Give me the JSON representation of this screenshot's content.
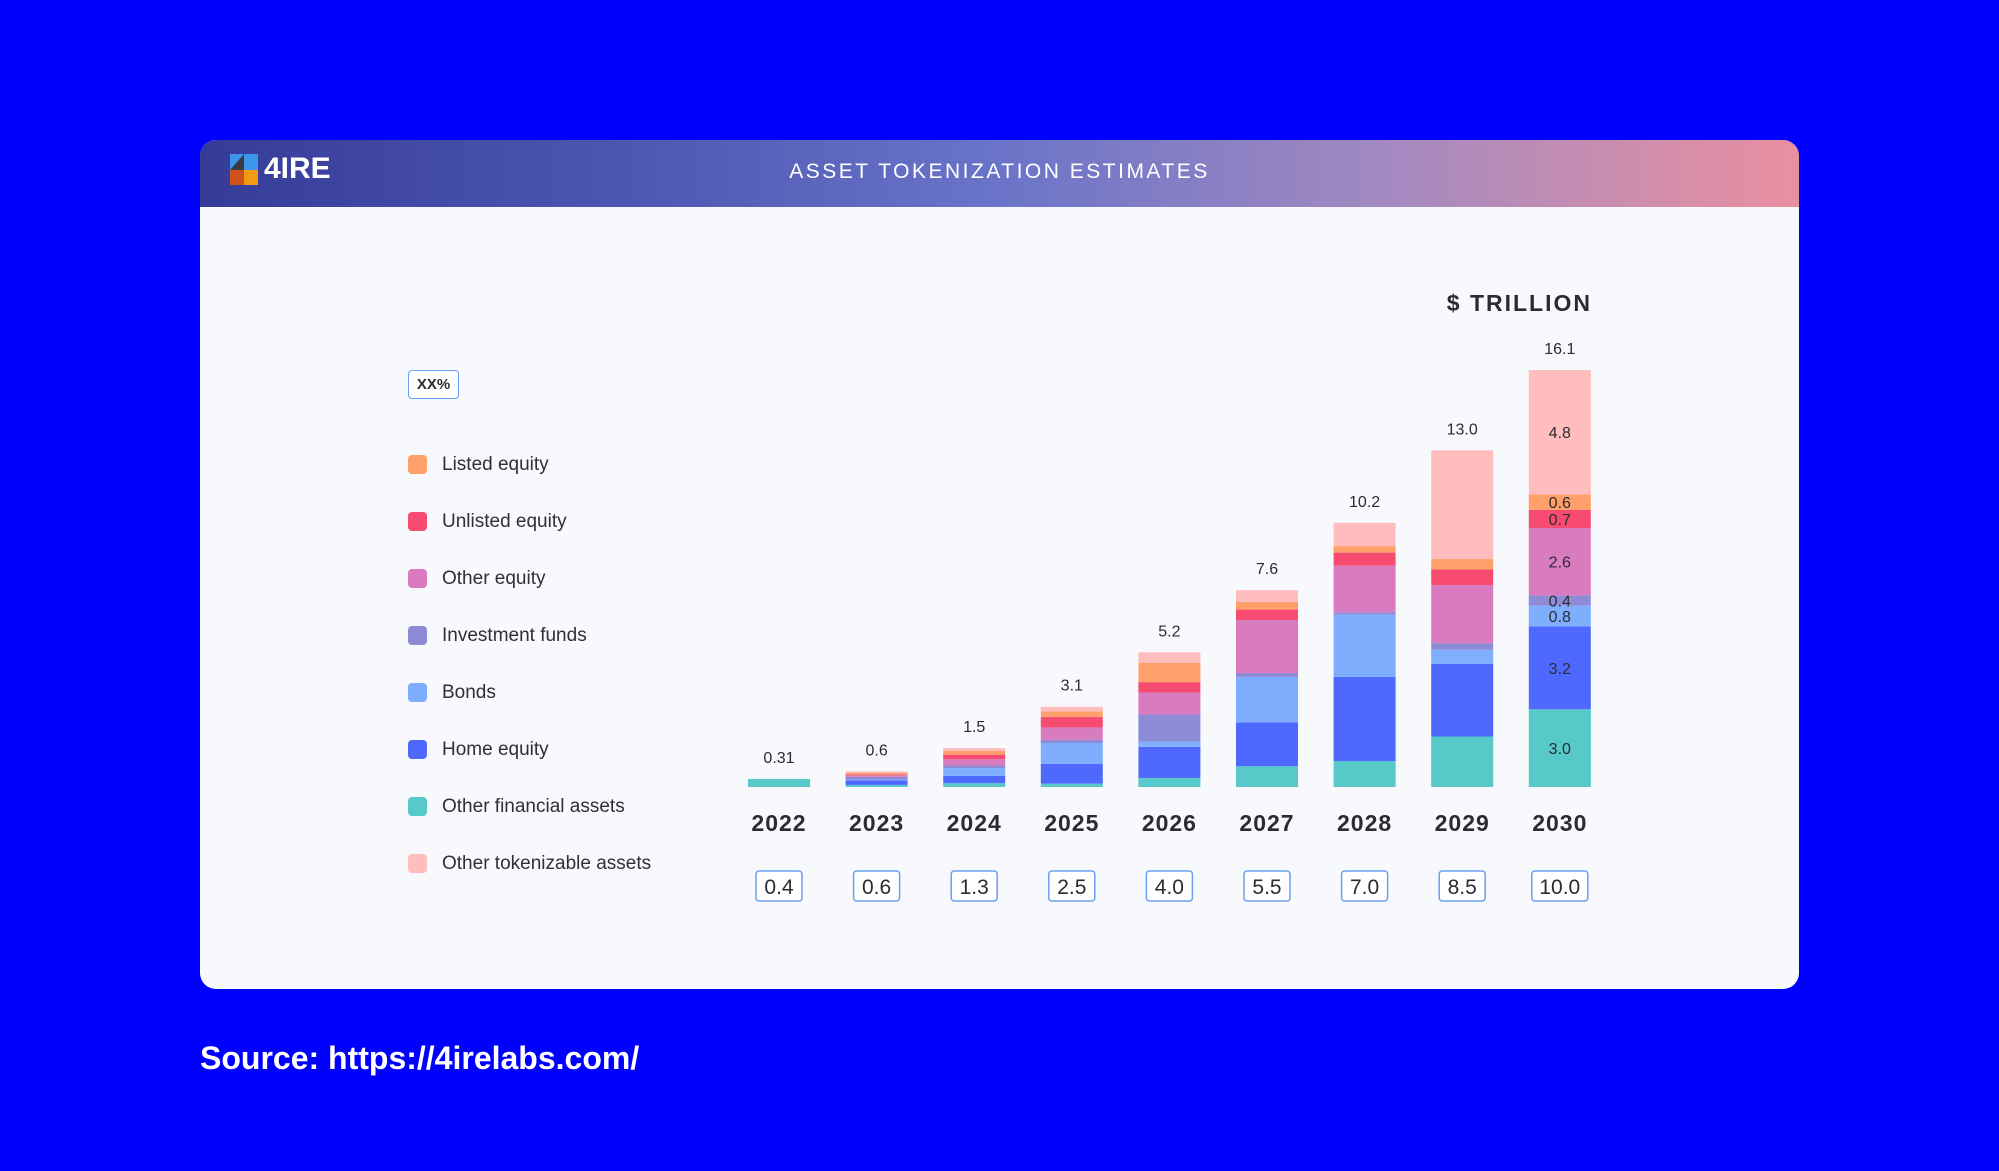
{
  "header": {
    "logo_text": "4IRE",
    "title": "ASSET TOKENIZATION ESTIMATES"
  },
  "legend": {
    "badge": "XX%"
  },
  "source": "Source: https://4irelabs.com/",
  "colors": {
    "background": "#0000fe",
    "card": "#f7f9fd"
  },
  "chart_data": {
    "type": "bar",
    "stacked": true,
    "title": "ASSET TOKENIZATION ESTIMATES",
    "unit_label": "$ TRILLION",
    "categories": [
      "2022",
      "2023",
      "2024",
      "2025",
      "2026",
      "2027",
      "2028",
      "2029",
      "2030"
    ],
    "totals": [
      "0.31",
      "0.6",
      "1.5",
      "3.1",
      "5.2",
      "7.6",
      "10.2",
      "13.0",
      "16.1"
    ],
    "boxed_values": [
      "0.4",
      "0.6",
      "1.3",
      "2.5",
      "4.0",
      "5.5",
      "7.0",
      "8.5",
      "10.0"
    ],
    "legend_placement": "left",
    "grid": false,
    "series": [
      {
        "name": "Other financial assets",
        "color": "#56c9c8",
        "values": [
          0.31,
          0.08,
          0.15,
          0.13,
          0.35,
          0.8,
          1.0,
          1.95,
          3.0
        ]
      },
      {
        "name": "Home equity",
        "color": "#4f68fd",
        "values": [
          0,
          0.18,
          0.28,
          0.76,
          1.2,
          1.7,
          3.25,
          2.8,
          3.2
        ]
      },
      {
        "name": "Bonds",
        "color": "#7eaefd",
        "values": [
          0,
          0.03,
          0.3,
          0.81,
          0.2,
          1.75,
          2.4,
          0.55,
          0.8
        ]
      },
      {
        "name": "Investment funds",
        "color": "#8e8bd6",
        "values": [
          0,
          0.1,
          0.1,
          0.12,
          1.05,
          0.15,
          0.1,
          0.25,
          0.4
        ]
      },
      {
        "name": "Other equity",
        "color": "#d97cbf",
        "values": [
          0,
          0.06,
          0.24,
          0.48,
          0.85,
          2.05,
          1.8,
          2.25,
          2.6
        ]
      },
      {
        "name": "Unlisted equity",
        "color": "#f84b72",
        "values": [
          0,
          0.03,
          0.18,
          0.4,
          0.4,
          0.4,
          0.5,
          0.6,
          0.7
        ]
      },
      {
        "name": "Listed equity",
        "color": "#ff9f6a",
        "values": [
          0,
          0.06,
          0.14,
          0.22,
          0.75,
          0.3,
          0.25,
          0.4,
          0.6
        ]
      },
      {
        "name": "Other tokenizable assets",
        "color": "#ffbdbe",
        "values": [
          0,
          0.06,
          0.11,
          0.18,
          0.4,
          0.45,
          0.9,
          4.2,
          4.8
        ]
      }
    ],
    "segment_labels": {
      "2030": [
        "3.0",
        "3.2",
        "0.8",
        "0.4",
        "2.6",
        "0.7",
        "0.6",
        "4.8"
      ]
    }
  }
}
